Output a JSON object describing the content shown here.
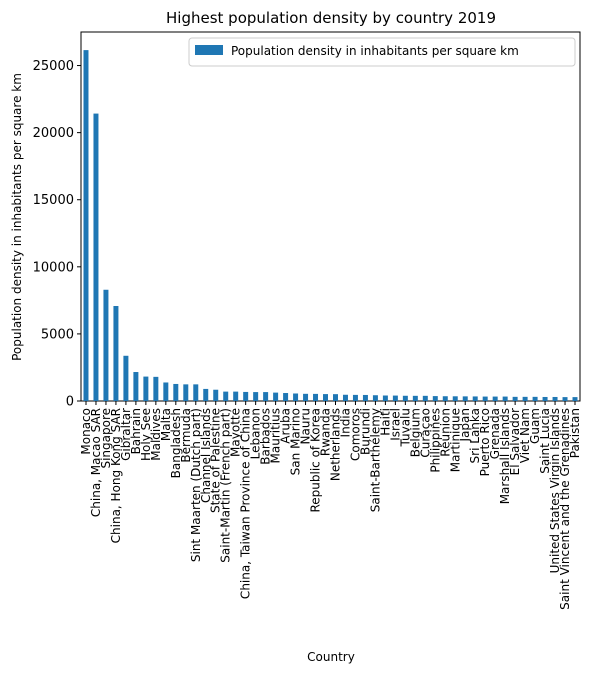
{
  "chart_data": {
    "type": "bar",
    "title": "Highest population density by country 2019",
    "xlabel": "Country",
    "ylabel": "Population density in inhabitants per square km",
    "ylim": [
      0,
      27500
    ],
    "yticks": [
      0,
      5000,
      10000,
      15000,
      20000,
      25000
    ],
    "grid": false,
    "legend_position": "top-right",
    "bar_color": "#1f77b4",
    "categories": [
      "Monaco",
      "China, Macao SAR",
      "Singapore",
      "China, Hong Kong SAR",
      "Gibraltar",
      "Bahrain",
      "Holy See",
      "Maldives",
      "Malta",
      "Bangladesh",
      "Bermuda",
      "Sint Maarten (Dutch part)",
      "Channel Islands",
      "State of Palestine",
      "Saint-Martin (French part)",
      "Mayotte",
      "China, Taiwan Province of China",
      "Lebanon",
      "Barbados",
      "Mauritius",
      "Aruba",
      "San Marino",
      "Nauru",
      "Republic of Korea",
      "Rwanda",
      "Netherlands",
      "India",
      "Comoros",
      "Burundi",
      "Saint-Barthélemy",
      "Haiti",
      "Israel",
      "Tuvalu",
      "Belgium",
      "Curaçao",
      "Philippines",
      "Réunion",
      "Martinique",
      "Japan",
      "Sri Lanka",
      "Puerto Rico",
      "Grenada",
      "Marshall Islands",
      "El Salvador",
      "Viet Nam",
      "Guam",
      "Saint Lucia",
      "United States Virgin Islands",
      "Saint Vincent and the Grenadines",
      "Pakistan"
    ],
    "series": [
      {
        "name": "Population density in inhabitants per square km",
        "values": [
          26150,
          21420,
          8290,
          7080,
          3370,
          2160,
          1820,
          1800,
          1380,
          1270,
          1240,
          1240,
          900,
          840,
          700,
          700,
          675,
          665,
          665,
          625,
          595,
          560,
          535,
          530,
          515,
          510,
          465,
          455,
          450,
          430,
          410,
          405,
          390,
          385,
          385,
          365,
          355,
          350,
          345,
          340,
          330,
          330,
          330,
          310,
          310,
          310,
          300,
          300,
          290,
          290
        ]
      }
    ]
  }
}
